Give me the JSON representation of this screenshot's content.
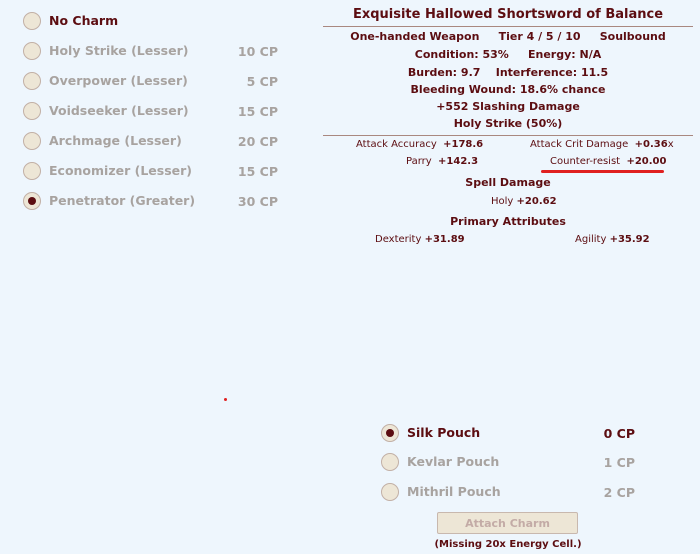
{
  "charms": [
    {
      "label": "No Charm",
      "cp": "",
      "selected": false,
      "enabled": true
    },
    {
      "label": "Holy Strike (Lesser)",
      "cp": "10 CP",
      "selected": false,
      "enabled": false
    },
    {
      "label": "Overpower (Lesser)",
      "cp": "5 CP",
      "selected": false,
      "enabled": false
    },
    {
      "label": "Voidseeker (Lesser)",
      "cp": "15 CP",
      "selected": false,
      "enabled": false
    },
    {
      "label": "Archmage (Lesser)",
      "cp": "20 CP",
      "selected": false,
      "enabled": false
    },
    {
      "label": "Economizer (Lesser)",
      "cp": "15 CP",
      "selected": false,
      "enabled": false
    },
    {
      "label": "Penetrator (Greater)",
      "cp": "30 CP",
      "selected": true,
      "enabled": false
    }
  ],
  "item": {
    "title": "Exquisite Hallowed Shortsword of Balance",
    "type": "One-handed Weapon",
    "tier": "Tier 4 / 5 / 10",
    "bound": "Soulbound",
    "condition": "Condition: 53%",
    "energy": "Energy: N/A",
    "burden": "Burden: 9.7",
    "interference": "Interference: 11.5",
    "bleeding": "Bleeding Wound: 18.6% chance",
    "damage": "+552 Slashing Damage",
    "proc": "Holy Strike (50%)",
    "stats": {
      "attack_accuracy": {
        "label": "Attack Accuracy",
        "value": "+178.6"
      },
      "attack_crit": {
        "label": "Attack Crit Damage",
        "value": "+0.36",
        "suffix": "x"
      },
      "parry": {
        "label": "Parry",
        "value": "+142.3"
      },
      "counter_resist": {
        "label": "Counter-resist",
        "value": "+20.00"
      }
    },
    "spell_damage_header": "Spell Damage",
    "holy": {
      "label": "Holy",
      "value": "+20.62"
    },
    "primary_header": "Primary Attributes",
    "dexterity": {
      "label": "Dexterity",
      "value": "+31.89"
    },
    "agility": {
      "label": "Agility",
      "value": "+35.92"
    },
    "highlight_color": "#e02020"
  },
  "pouches": [
    {
      "label": "Silk Pouch",
      "cp": "0 CP",
      "selected": true,
      "enabled": true
    },
    {
      "label": "Kevlar Pouch",
      "cp": "1 CP",
      "selected": false,
      "enabled": false
    },
    {
      "label": "Mithril Pouch",
      "cp": "2 CP",
      "selected": false,
      "enabled": false
    }
  ],
  "attach_button": "Attach Charm",
  "missing_note": "(Missing 20x Energy Cell.)"
}
